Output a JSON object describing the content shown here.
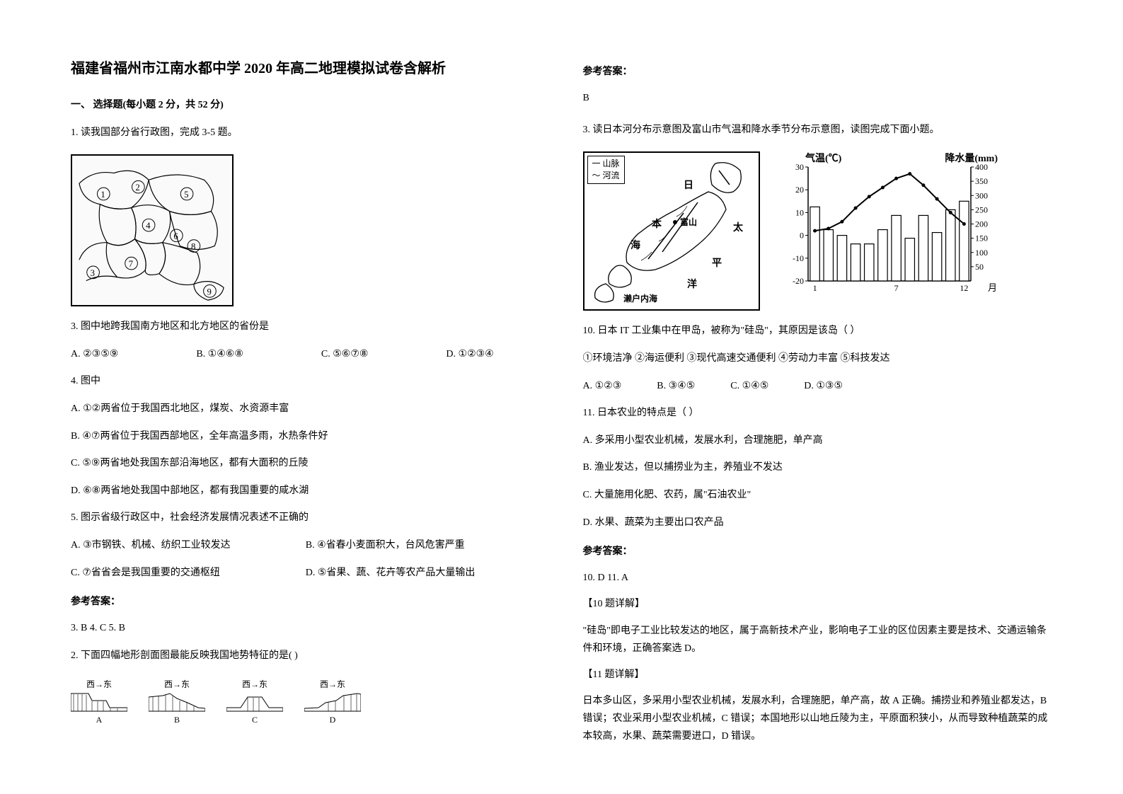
{
  "title": "福建省福州市江南水都中学 2020 年高二地理模拟试卷含解析",
  "section1": "一、 选择题(每小题 2 分，共 52 分)",
  "q1": {
    "stem": "1. 读我国部分省行政图，完成 3-5 题。",
    "sub3": "3.  图中地跨我国南方地区和北方地区的省份是",
    "opts3": {
      "A": "A. ②③⑤⑨",
      "B": "B. ①④⑥⑧",
      "C": "C. ⑤⑥⑦⑧",
      "D": "D. ①②③④"
    },
    "sub4": "4.  图中",
    "opts4": {
      "A": "A. ①②两省位于我国西北地区，煤炭、水资源丰富",
      "B": "B. ④⑦两省位于我国西部地区，全年高温多雨，水热条件好",
      "C": "C. ⑤⑨两省地处我国东部沿海地区，都有大面积的丘陵",
      "D": "D. ⑥⑧两省地处我国中部地区，都有我国重要的咸水湖"
    },
    "sub5": "5.  图示省级行政区中，社会经济发展情况表述不正确的",
    "opts5": {
      "A": "A. ③市钢铁、机械、纺织工业较发达",
      "B": "B. ④省春小麦面积大，台风危害严重",
      "C": "C. ⑦省省会是我国重要的交通枢纽",
      "D": "D. ⑤省果、蔬、花卉等农产品大量输出"
    }
  },
  "ans_header": "参考答案：",
  "ans1": "3. B    4. C    5. B",
  "q2": {
    "stem": "2. 下面四幅地形剖面图最能反映我国地势特征的是(        )",
    "labels": {
      "dir": "西→东",
      "A": "A",
      "B": "B",
      "C": "C",
      "D": "D"
    }
  },
  "ans2": "B",
  "q3": {
    "stem": "3. 读日本河分布示意图及富山市气温和降水季节分布示意图，读图完成下面小题。",
    "legend": {
      "l1": "一 山脉",
      "l2": "～ 河流"
    },
    "map_labels": {
      "ri": "日",
      "ben": "本",
      "hai": "海",
      "fu": "富山",
      "tai": "太",
      "ping": "平",
      "yang": "洋",
      "seto": "濑户内海"
    },
    "chart": {
      "temp_label": "气温(℃)",
      "precip_label": "降水量(mm)",
      "x_label": "月",
      "temp_ticks": [
        -20,
        -10,
        0,
        10,
        20,
        30
      ],
      "precip_ticks": [
        50,
        100,
        150,
        200,
        250,
        300,
        350,
        400
      ],
      "months_shown": [
        1,
        7,
        12
      ],
      "temp_values": [
        2,
        3,
        6,
        12,
        17,
        21,
        25,
        27,
        22,
        16,
        10,
        5
      ],
      "precip_values": [
        260,
        180,
        160,
        130,
        130,
        180,
        230,
        150,
        230,
        170,
        250,
        280
      ],
      "temp_color": "#000000",
      "bar_fill": "#ffffff",
      "bar_stroke": "#000000",
      "axis_color": "#000000"
    },
    "sub10": "10.  日本 IT 工业集中在甲岛，被称为\"硅岛\"，其原因是该岛（       ）",
    "sub10_items": "①环境洁净        ②海运便利        ③现代高速交通便利        ④劳动力丰富        ⑤科技发达",
    "opts10": {
      "A": "A. ①②③",
      "B": "B. ③④⑤",
      "C": "C. ①④⑤",
      "D": "D. ①③⑤"
    },
    "sub11": "11.  日本农业的特点是（       ）",
    "opts11": {
      "A": "A. 多采用小型农业机械，发展水利，合理施肥，单产高",
      "B": "B. 渔业发达，但以捕捞业为主，养殖业不发达",
      "C": "C. 大量施用化肥、农药，属\"石油农业\"",
      "D": "D. 水果、蔬菜为主要出口农产品"
    }
  },
  "ans3": "10.  D       11.  A",
  "explain10_h": "【10 题详解】",
  "explain10": "\"硅岛\"即电子工业比较发达的地区，属于高新技术产业，影响电子工业的区位因素主要是技术、交通运输条件和环境，正确答案选 D。",
  "explain11_h": "【11 题详解】",
  "explain11": "日本多山区，多采用小型农业机械，发展水利，合理施肥，单产高，故 A 正确。捕捞业和养殖业都发达，B 错误；农业采用小型农业机械，C 错误；本国地形以山地丘陵为主，平原面积狭小，从而导致种植蔬菜的成本较高，水果、蔬菜需要进口，D 错误。"
}
